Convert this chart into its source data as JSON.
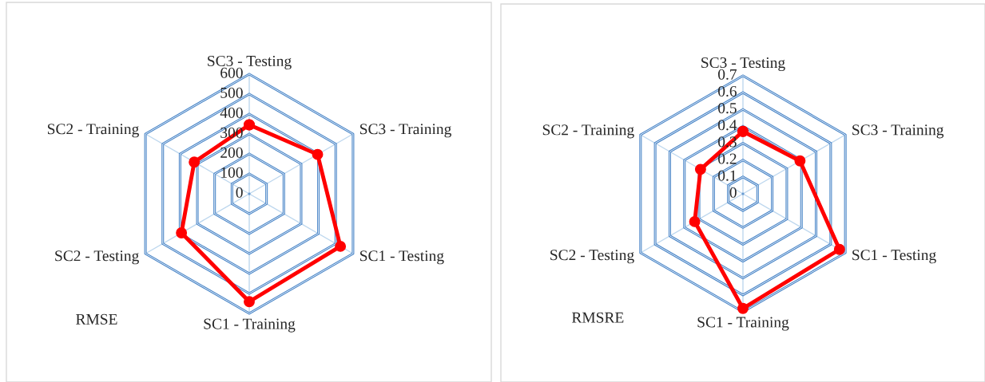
{
  "chart_data": [
    {
      "type": "radar",
      "title": "RMSE",
      "categories": [
        "SC3 - Testing",
        "SC3 - Training",
        "SC1 - Testing",
        "SC1 - Training",
        "SC2 - Testing",
        "SC2 - Training"
      ],
      "series": [
        {
          "color": "#ff0000",
          "values": [
            346,
            395,
            527,
            541,
            392,
            318
          ]
        }
      ],
      "ylim": [
        0,
        600
      ],
      "yticks": [
        0,
        100,
        200,
        300,
        400,
        500,
        600
      ],
      "grid": true,
      "marker": "circle",
      "line_style": "solid"
    },
    {
      "type": "radar",
      "title": "RMSRE",
      "categories": [
        "SC3 - Testing",
        "SC3 - Training",
        "SC1 - Testing",
        "SC1 - Training",
        "SC2 - Testing",
        "SC2 - Training"
      ],
      "series": [
        {
          "color": "#ff0000",
          "values": [
            0.37,
            0.39,
            0.66,
            0.68,
            0.33,
            0.29
          ]
        }
      ],
      "ylim": [
        0,
        0.7
      ],
      "yticks": [
        0,
        0.1,
        0.2,
        0.3,
        0.4,
        0.5,
        0.6,
        0.7
      ],
      "grid": true,
      "marker": "circle",
      "line_style": "solid"
    }
  ]
}
